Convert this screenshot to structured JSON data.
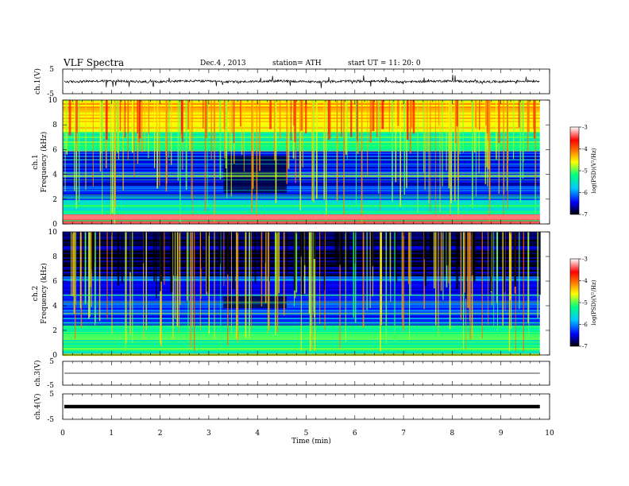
{
  "header": {
    "title": "VLF  Spectra",
    "date": "Dec.4  , 2013",
    "station": "station= ATH",
    "start": "start  UT  =    11: 20: 0"
  },
  "colorbar": {
    "label": "log(PSD)(V²/Hz)",
    "ticks": [
      "-3",
      "-4",
      "-5",
      "-6",
      "-7"
    ],
    "range": [
      -7,
      -3
    ],
    "colors": [
      "#000000",
      "#0000ff",
      "#00c8ff",
      "#00ff80",
      "#ffff00",
      "#ff8000",
      "#ff0000",
      "#ffffff"
    ]
  },
  "chart_data": [
    {
      "type": "line",
      "ylabel": "ch.1(V)",
      "ylim": [
        -5,
        5
      ],
      "yticks": [
        "5",
        "-5"
      ],
      "description_values": "broadband waveform, amplitude mostly within ±1 V with sferic spikes",
      "color": "#000000"
    },
    {
      "type": "heatmap",
      "ylabel": "Frequency  (kHz)",
      "channel_label": "ch.1",
      "ylim": [
        0,
        10
      ],
      "yticks": [
        "0",
        "2",
        "4",
        "6",
        "8",
        "10"
      ],
      "xlim": [
        0,
        9.8
      ],
      "band_features": [
        {
          "f_khz": [
            0,
            0.8
          ],
          "log_psd": -3.5
        },
        {
          "f_khz": [
            0.8,
            2.0
          ],
          "log_psd": -5.5
        },
        {
          "f_khz": [
            2.0,
            6.0
          ],
          "log_psd": -6.4
        },
        {
          "f_khz": [
            6.0,
            7.5
          ],
          "log_psd": -5.3
        },
        {
          "f_khz": [
            7.5,
            10.0
          ],
          "log_psd": -4.5
        }
      ],
      "quiet_region": {
        "t_min": [
          3.3,
          4.6
        ],
        "f_khz": [
          2.5,
          5.5
        ],
        "log_psd": -6.9
      }
    },
    {
      "type": "heatmap",
      "ylabel": "Frequency  (kHz)",
      "channel_label": "ch.2",
      "ylim": [
        0,
        10
      ],
      "yticks": [
        "0",
        "2",
        "4",
        "6",
        "8",
        "10"
      ],
      "xlim": [
        0,
        9.8
      ],
      "band_features": [
        {
          "f_khz": [
            0,
            0.3
          ],
          "log_psd": -4.5
        },
        {
          "f_khz": [
            0.3,
            2.5
          ],
          "log_psd": -5.2
        },
        {
          "f_khz": [
            2.5,
            6.5
          ],
          "log_psd": -6.3
        },
        {
          "f_khz": [
            6.5,
            10.0
          ],
          "log_psd": -6.8
        }
      ],
      "quiet_region": {
        "t_min": [
          3.3,
          4.6
        ],
        "f_khz": [
          3.8,
          4.8
        ],
        "log_psd": -6.9
      }
    },
    {
      "type": "line",
      "ylabel": "ch.3(V)",
      "ylim": [
        -5,
        5
      ],
      "yticks": [
        "5",
        "-5"
      ],
      "level_v": 0,
      "color": "#000000"
    },
    {
      "type": "line",
      "ylabel": "ch.4(V)",
      "ylim": [
        -5,
        5
      ],
      "yticks": [
        "5",
        "-5"
      ],
      "level_v": 0,
      "color": "#000000"
    }
  ],
  "xaxis": {
    "label": "Time  (min)",
    "xlim": [
      0,
      10
    ],
    "ticks": [
      "0",
      "1",
      "2",
      "3",
      "4",
      "5",
      "6",
      "7",
      "8",
      "9",
      "10"
    ],
    "data_end": 9.8
  }
}
